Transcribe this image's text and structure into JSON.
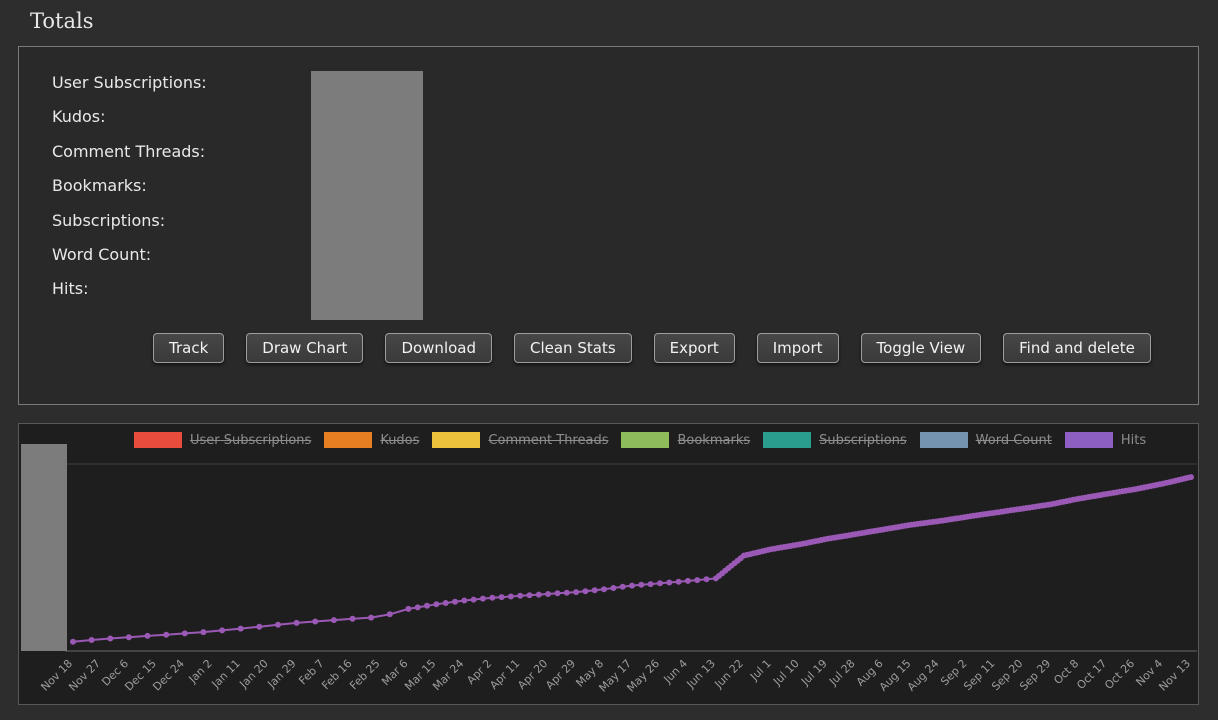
{
  "page": {
    "title": "Totals"
  },
  "totals_panel": {
    "labels": [
      "User Subscriptions:",
      "Kudos:",
      "Comment Threads:",
      "Bookmarks:",
      "Subscriptions:",
      "Word Count:",
      "Hits:"
    ],
    "values_redacted": true,
    "buttons": [
      "Track",
      "Draw Chart",
      "Download",
      "Clean Stats",
      "Export",
      "Import",
      "Toggle View",
      "Find and delete"
    ]
  },
  "chart_panel": {
    "legend": [
      {
        "label": "User Subscriptions",
        "color": "#e74c3c",
        "active": false
      },
      {
        "label": "Kudos",
        "color": "#e67e22",
        "active": false
      },
      {
        "label": "Comment Threads",
        "color": "#ecc23d",
        "active": false
      },
      {
        "label": "Bookmarks",
        "color": "#8fbc5a",
        "active": false
      },
      {
        "label": "Subscriptions",
        "color": "#2a9d8f",
        "active": false
      },
      {
        "label": "Word Count",
        "color": "#7593af",
        "active": false
      },
      {
        "label": "Hits",
        "color": "#8e5fc2",
        "active": true
      }
    ]
  },
  "chart_data": {
    "type": "line",
    "title": "",
    "xlabel": "",
    "ylabel": "",
    "ylim": [
      0,
      100
    ],
    "grid": false,
    "legend_position": "top",
    "y_axis_redacted": true,
    "categories": [
      "Nov 18",
      "Nov 27",
      "Dec 6",
      "Dec 15",
      "Dec 24",
      "Jan 2",
      "Jan 11",
      "Jan 20",
      "Jan 29",
      "Feb 7",
      "Feb 16",
      "Feb 25",
      "Mar 6",
      "Mar 15",
      "Mar 24",
      "Apr 2",
      "Apr 11",
      "Apr 20",
      "Apr 29",
      "May 8",
      "May 17",
      "May 26",
      "Jun 4",
      "Jun 13",
      "Jun 22",
      "Jul 1",
      "Jul 10",
      "Jul 19",
      "Jul 28",
      "Aug 6",
      "Aug 15",
      "Aug 24",
      "Sep 2",
      "Sep 11",
      "Sep 20",
      "Sep 29",
      "Oct 8",
      "Oct 17",
      "Oct 26",
      "Nov 4",
      "Nov 13"
    ],
    "series": [
      {
        "name": "Hits",
        "color": "#9b59b6",
        "values": [
          5,
          6.3,
          7.4,
          8.4,
          9.4,
          10.5,
          12,
          13.5,
          15,
          16.2,
          17.2,
          18.2,
          22.5,
          25,
          27,
          28.5,
          29.5,
          30.5,
          31.5,
          33,
          35,
          36.2,
          37.5,
          38.8,
          51,
          54.5,
          57,
          60,
          62.5,
          65,
          67.5,
          69.5,
          71.8,
          74,
          76.2,
          78.5,
          81.5,
          84,
          86.5,
          89.5,
          93
        ]
      }
    ]
  }
}
